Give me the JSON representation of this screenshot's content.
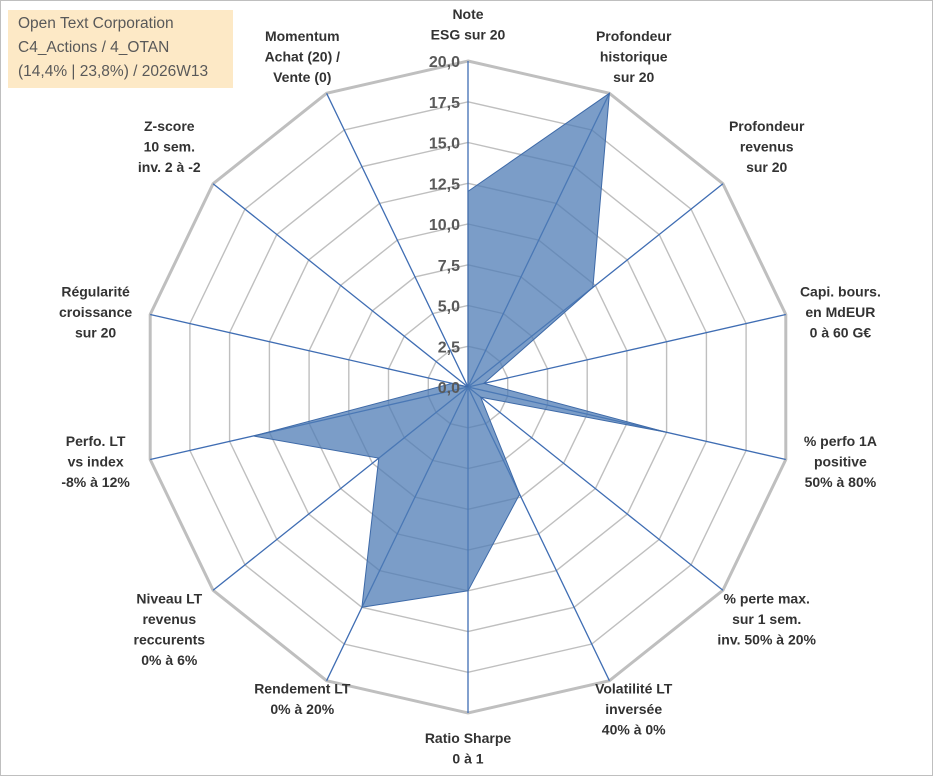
{
  "info_box": {
    "line1": "Open Text Corporation",
    "line2": "C4_Actions / 4_OTAN",
    "line3": "(14,4% | 23,8%) / 2026W13"
  },
  "chart_data": {
    "type": "radar",
    "rmin": 0,
    "rmax": 20,
    "ticks": [
      "0,0",
      "2,5",
      "5,0",
      "7,5",
      "10,0",
      "12,5",
      "15,0",
      "17,5",
      "20,0"
    ],
    "axes": [
      {
        "label": [
          "Note",
          "ESG sur 20"
        ],
        "value": 12.0
      },
      {
        "label": [
          "Profondeur",
          "historique",
          "sur 20"
        ],
        "value": 20.0
      },
      {
        "label": [
          "Profondeur",
          "revenus",
          "sur 20"
        ],
        "value": 9.8
      },
      {
        "label": [
          "Capi. bours.",
          "en MdEUR",
          "0 à 60 G€"
        ],
        "value": 1.0
      },
      {
        "label": [
          "% perfo 1A",
          "positive",
          "50% à 80%"
        ],
        "value": 12.5
      },
      {
        "label": [
          "% perte max.",
          "sur 1 sem.",
          "inv. 50% à 20%"
        ],
        "value": 1.0
      },
      {
        "label": [
          "Volatilité LT",
          "inversée",
          "40% à 0%"
        ],
        "value": 7.3
      },
      {
        "label": [
          "Ratio Sharpe",
          "0 à 1"
        ],
        "value": 12.5
      },
      {
        "label": [
          "Rendement LT",
          "0% à 20%"
        ],
        "value": 15.0
      },
      {
        "label": [
          "Niveau LT",
          "revenus",
          "reccurents",
          "0% à 6%"
        ],
        "value": 7.0
      },
      {
        "label": [
          "Perfo. LT",
          "vs index",
          "-8% à 12%"
        ],
        "value": 13.5
      },
      {
        "label": [
          "Régularité",
          "croissance",
          "sur 20"
        ],
        "value": 1.0
      },
      {
        "label": [
          "Z-score",
          "10 sem.",
          "inv. 2 à -2"
        ],
        "value": 0.0
      },
      {
        "label": [
          "Momentum",
          "Achat (20) /",
          "Vente (0)"
        ],
        "value": 0.0
      }
    ],
    "colors": {
      "fill": "#4f7cb5",
      "stroke": "#3e6aa8",
      "grid": "#bfbfbf",
      "spoke": "#3f6db3"
    }
  }
}
